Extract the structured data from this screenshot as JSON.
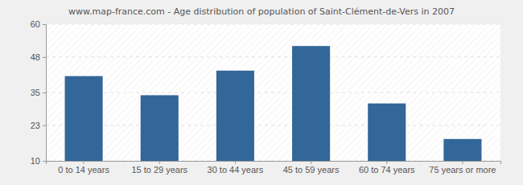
{
  "chart_data": {
    "type": "bar",
    "title": "www.map-france.com - Age distribution of population of Saint-Clément-de-Vers in 2007",
    "categories": [
      "0 to 14 years",
      "15 to 29 years",
      "30 to 44 years",
      "45 to 59 years",
      "60 to 74 years",
      "75 years or more"
    ],
    "values": [
      41,
      34,
      43,
      52,
      31,
      18
    ],
    "color": "#336699",
    "ylim": [
      10,
      60
    ],
    "yticks": [
      10,
      23,
      35,
      48,
      60
    ],
    "grid": true
  }
}
